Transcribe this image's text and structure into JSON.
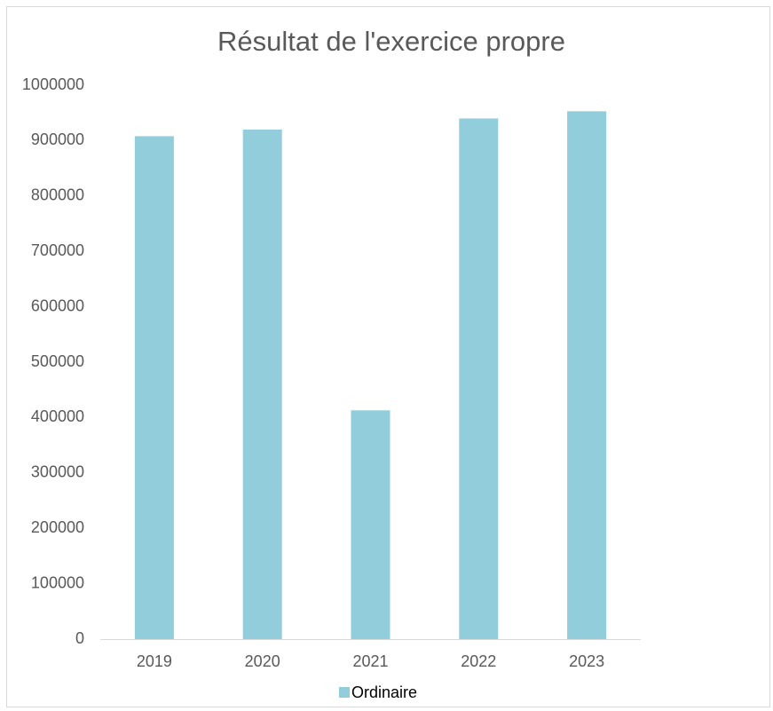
{
  "chart_data": {
    "type": "bar",
    "title": "Résultat de l'exercice propre",
    "categories": [
      "2019",
      "2020",
      "2021",
      "2022",
      "2023"
    ],
    "series": [
      {
        "name": "Ordinaire",
        "color": "#92cddc",
        "values": [
          908000,
          920000,
          413000,
          940000,
          953000
        ]
      }
    ],
    "ylim": [
      0,
      1000000
    ],
    "yticks": [
      0,
      100000,
      200000,
      300000,
      400000,
      500000,
      600000,
      700000,
      800000,
      900000,
      1000000
    ],
    "grid": false,
    "legend": "bottom"
  }
}
